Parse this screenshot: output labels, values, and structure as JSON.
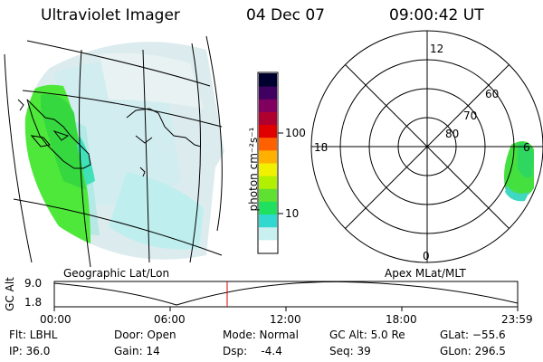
{
  "header": {
    "instrument": "Ultraviolet Imager",
    "date": "04 Dec 07",
    "time": "09:00:42 UT"
  },
  "colorbar": {
    "unit_label": "photon cm⁻²s⁻¹",
    "tick_100": "100",
    "tick_10": "10",
    "colors": [
      "#ffffff",
      "#c8f0f0",
      "#30d8d0",
      "#20e060",
      "#60e030",
      "#b0f000",
      "#f0f000",
      "#ffb000",
      "#ff6000",
      "#e00000",
      "#b00030",
      "#800060",
      "#400060",
      "#000030"
    ]
  },
  "geo_panel": {
    "label": "Geographic Lat/Lon"
  },
  "polar_panel": {
    "label": "Apex MLat/MLT",
    "mlt_12": "12",
    "mlt_18": "18",
    "mlt_6": "6",
    "mlt_0": "0",
    "lat_60": "60",
    "lat_70": "70",
    "lat_80": "80"
  },
  "altitude_plot": {
    "ylabel": "GC Alt",
    "ytick_top": "9.0",
    "ytick_bottom": "1.8",
    "xticks": [
      "00:00",
      "06:00",
      "12:00",
      "18:00",
      "23:59"
    ]
  },
  "info": {
    "filter": "Flt: LBHL",
    "ip": "IP: 36.0",
    "door": "Door: Open",
    "gain": "Gain: 14",
    "mode": "Mode: Normal",
    "dsp": "Dsp:    -4.4",
    "gc_alt": "GC Alt: 5.0 Re",
    "seq": "Seq: 39",
    "glat": "GLat: −55.6",
    "glon": "GLon: 296.5"
  }
}
